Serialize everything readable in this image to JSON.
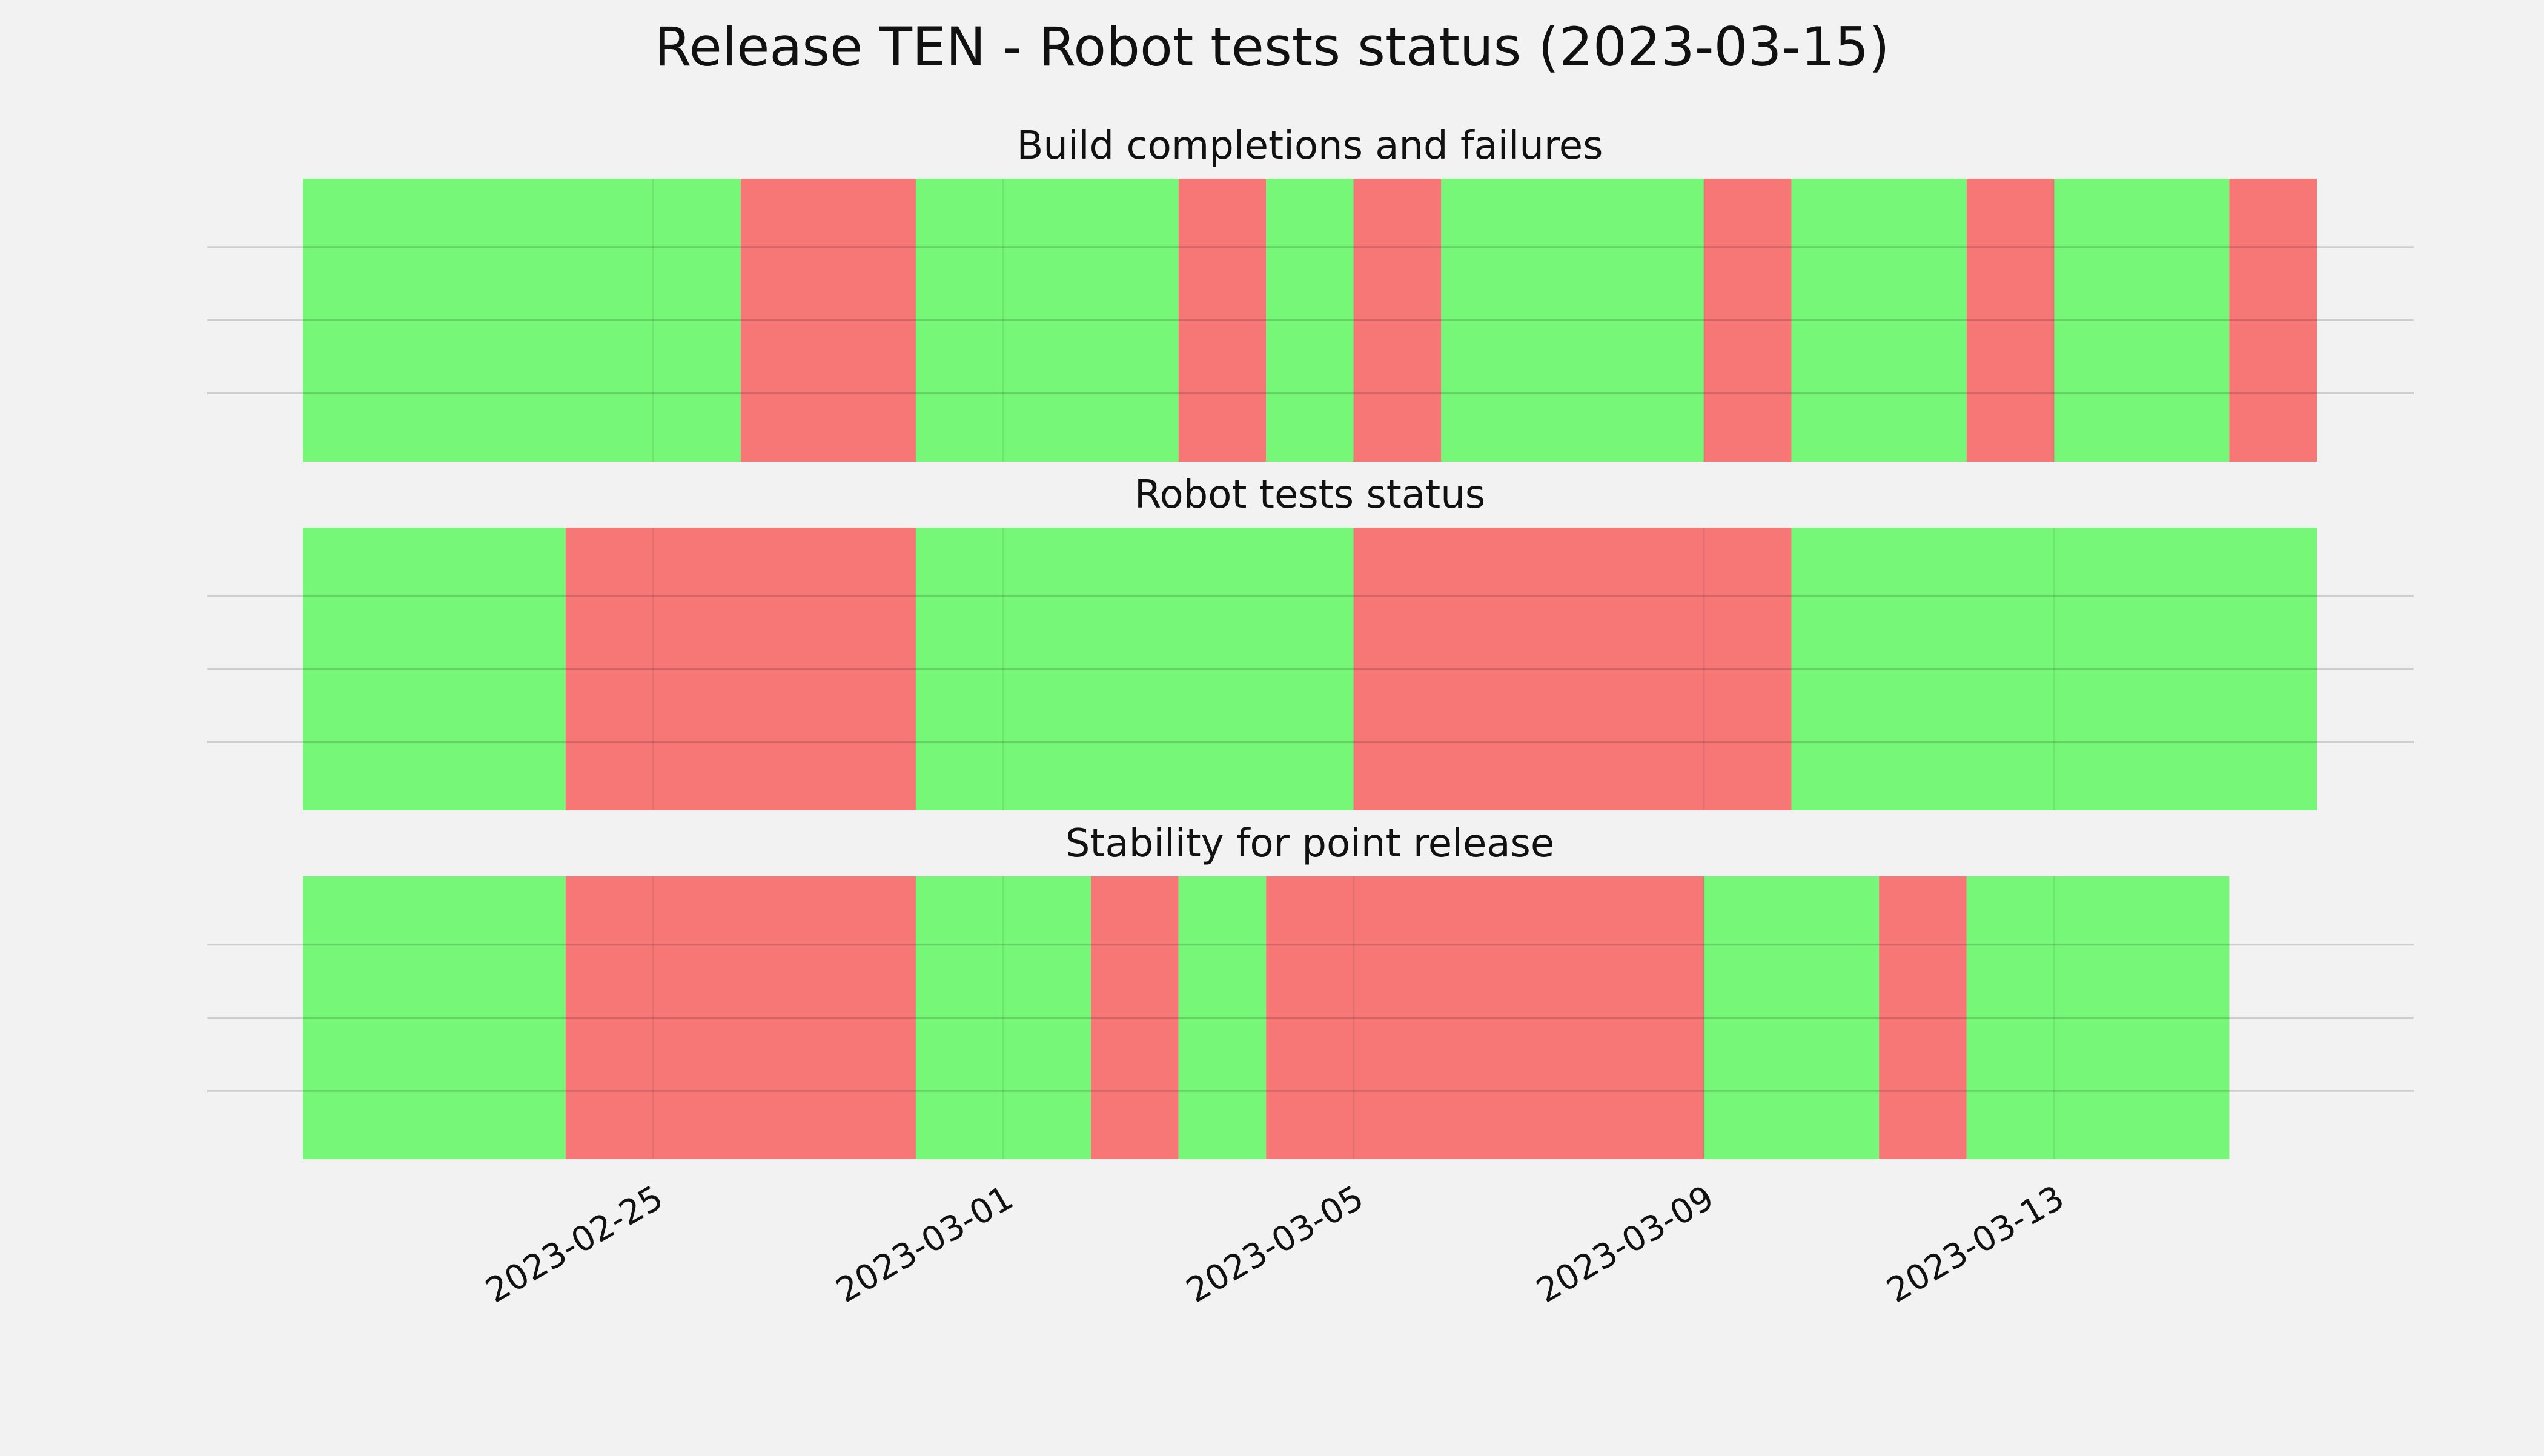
{
  "chart_data": {
    "type": "bar",
    "title": "Release TEN - Robot tests status (2023-03-15)",
    "x_axis": {
      "type": "date",
      "range": [
        "2023-02-21",
        "2023-03-16"
      ],
      "ticks": [
        "2023-02-25",
        "2023-03-01",
        "2023-03-05",
        "2023-03-09",
        "2023-03-13"
      ]
    },
    "grid": true,
    "colors": {
      "pass": "#77f777",
      "fail": "#f77777",
      "background": "#f2f2f2",
      "grid": "#cccccc"
    },
    "panels": [
      {
        "title": "Build completions and failures",
        "segments": [
          {
            "start": "2023-02-21",
            "end": "2023-02-26",
            "status": "pass"
          },
          {
            "start": "2023-02-26",
            "end": "2023-02-28",
            "status": "fail"
          },
          {
            "start": "2023-02-28",
            "end": "2023-03-03",
            "status": "pass"
          },
          {
            "start": "2023-03-03",
            "end": "2023-03-04",
            "status": "fail"
          },
          {
            "start": "2023-03-04",
            "end": "2023-03-05",
            "status": "pass"
          },
          {
            "start": "2023-03-05",
            "end": "2023-03-06",
            "status": "fail"
          },
          {
            "start": "2023-03-06",
            "end": "2023-03-09",
            "status": "pass"
          },
          {
            "start": "2023-03-09",
            "end": "2023-03-10",
            "status": "fail"
          },
          {
            "start": "2023-03-10",
            "end": "2023-03-12",
            "status": "pass"
          },
          {
            "start": "2023-03-12",
            "end": "2023-03-13",
            "status": "fail"
          },
          {
            "start": "2023-03-13",
            "end": "2023-03-15",
            "status": "pass"
          },
          {
            "start": "2023-03-15",
            "end": "2023-03-16",
            "status": "fail"
          }
        ]
      },
      {
        "title": "Robot tests status",
        "segments": [
          {
            "start": "2023-02-21",
            "end": "2023-02-24",
            "status": "pass"
          },
          {
            "start": "2023-02-24",
            "end": "2023-02-28",
            "status": "fail"
          },
          {
            "start": "2023-02-28",
            "end": "2023-03-05",
            "status": "pass"
          },
          {
            "start": "2023-03-05",
            "end": "2023-03-10",
            "status": "fail"
          },
          {
            "start": "2023-03-10",
            "end": "2023-03-16",
            "status": "pass"
          }
        ]
      },
      {
        "title": "Stability for point release",
        "segments": [
          {
            "start": "2023-02-21",
            "end": "2023-02-24",
            "status": "pass"
          },
          {
            "start": "2023-02-24",
            "end": "2023-02-28",
            "status": "fail"
          },
          {
            "start": "2023-02-28",
            "end": "2023-03-02",
            "status": "pass"
          },
          {
            "start": "2023-03-02",
            "end": "2023-03-03",
            "status": "fail"
          },
          {
            "start": "2023-03-03",
            "end": "2023-03-04",
            "status": "pass"
          },
          {
            "start": "2023-03-04",
            "end": "2023-03-09",
            "status": "fail"
          },
          {
            "start": "2023-03-09",
            "end": "2023-03-11",
            "status": "pass"
          },
          {
            "start": "2023-03-11",
            "end": "2023-03-12",
            "status": "fail"
          },
          {
            "start": "2023-03-12",
            "end": "2023-03-15",
            "status": "pass"
          }
        ]
      }
    ]
  }
}
